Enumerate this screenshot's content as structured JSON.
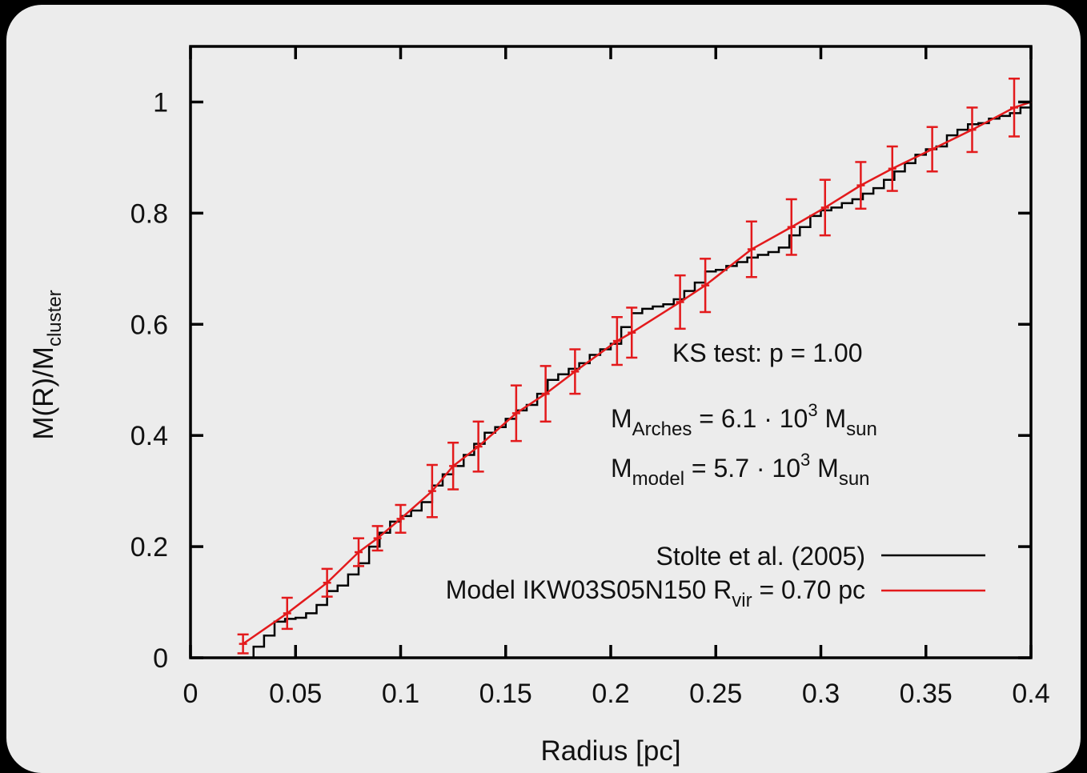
{
  "chart_data": {
    "type": "line",
    "xlabel": "Radius [pc]",
    "ylabel": "M(R)/M",
    "ylabel_sub": "cluster",
    "xlim": [
      0,
      0.4
    ],
    "ylim": [
      0,
      1.1
    ],
    "x_ticks": [
      "0",
      "0.05",
      "0.1",
      "0.15",
      "0.2",
      "0.25",
      "0.3",
      "0.35",
      "0.4"
    ],
    "x_tick_values": [
      0,
      0.05,
      0.1,
      0.15,
      0.2,
      0.25,
      0.3,
      0.35,
      0.4
    ],
    "y_ticks": [
      "0",
      "0.2",
      "0.4",
      "0.6",
      "0.8",
      "1"
    ],
    "y_tick_values": [
      0,
      0.2,
      0.4,
      0.6,
      0.8,
      1.0
    ],
    "grid": false,
    "legend_position": "bottom-right",
    "annotations": {
      "ks_test": "KS test:  p =  1.00",
      "m_arches_symbol": "M",
      "m_arches_sub": "Arches",
      "m_arches_value": " =  6.1 · 10",
      "m_arches_exp": "3",
      "m_arches_unit": " M",
      "m_arches_unit_sub": "sun",
      "m_model_symbol": "M",
      "m_model_sub": "model",
      "m_model_value": "  =  5.7 · 10",
      "m_model_exp": "3",
      "m_model_unit": " M",
      "m_model_unit_sub": "sun"
    },
    "series": [
      {
        "name": "Stolte et al. (2005)",
        "color": "#000000",
        "style": "step",
        "x": [
          0.025,
          0.03,
          0.035,
          0.04,
          0.045,
          0.05,
          0.055,
          0.06,
          0.065,
          0.07,
          0.075,
          0.08,
          0.085,
          0.09,
          0.095,
          0.1,
          0.105,
          0.11,
          0.115,
          0.12,
          0.125,
          0.13,
          0.135,
          0.14,
          0.145,
          0.15,
          0.155,
          0.16,
          0.165,
          0.17,
          0.175,
          0.18,
          0.185,
          0.19,
          0.195,
          0.2,
          0.205,
          0.21,
          0.215,
          0.22,
          0.225,
          0.23,
          0.235,
          0.24,
          0.245,
          0.25,
          0.255,
          0.26,
          0.265,
          0.27,
          0.275,
          0.28,
          0.285,
          0.29,
          0.295,
          0.3,
          0.305,
          0.31,
          0.315,
          0.32,
          0.325,
          0.33,
          0.335,
          0.34,
          0.345,
          0.35,
          0.355,
          0.36,
          0.365,
          0.37,
          0.375,
          0.38,
          0.385,
          0.39,
          0.395,
          0.4
        ],
        "y": [
          0.0,
          0.02,
          0.04,
          0.065,
          0.07,
          0.072,
          0.08,
          0.095,
          0.12,
          0.13,
          0.15,
          0.17,
          0.2,
          0.225,
          0.245,
          0.255,
          0.265,
          0.28,
          0.31,
          0.33,
          0.345,
          0.365,
          0.385,
          0.405,
          0.415,
          0.43,
          0.445,
          0.455,
          0.475,
          0.5,
          0.51,
          0.52,
          0.53,
          0.545,
          0.555,
          0.565,
          0.595,
          0.62,
          0.628,
          0.632,
          0.636,
          0.645,
          0.66,
          0.675,
          0.695,
          0.698,
          0.705,
          0.712,
          0.72,
          0.725,
          0.73,
          0.738,
          0.76,
          0.775,
          0.795,
          0.805,
          0.81,
          0.818,
          0.825,
          0.835,
          0.845,
          0.86,
          0.875,
          0.89,
          0.905,
          0.915,
          0.92,
          0.94,
          0.95,
          0.96,
          0.962,
          0.97,
          0.975,
          0.98,
          0.99,
          1.0
        ]
      },
      {
        "name": "Model IKW03S05N150 R",
        "name_sub": "vir",
        "name_rest": " = 0.70 pc",
        "color": "#e31a1c",
        "style": "line",
        "x": [
          0.025,
          0.046,
          0.065,
          0.08,
          0.089,
          0.1,
          0.115,
          0.125,
          0.137,
          0.155,
          0.169,
          0.183,
          0.203,
          0.21,
          0.233,
          0.245,
          0.267,
          0.286,
          0.302,
          0.319,
          0.334,
          0.353,
          0.372,
          0.392,
          0.4
        ],
        "y": [
          0.025,
          0.08,
          0.135,
          0.19,
          0.215,
          0.25,
          0.3,
          0.345,
          0.38,
          0.44,
          0.475,
          0.515,
          0.57,
          0.585,
          0.64,
          0.67,
          0.735,
          0.775,
          0.81,
          0.85,
          0.88,
          0.915,
          0.95,
          0.99,
          1.0
        ],
        "err": [
          0.017,
          0.028,
          0.025,
          0.025,
          0.022,
          0.025,
          0.047,
          0.042,
          0.045,
          0.05,
          0.05,
          0.04,
          0.043,
          0.045,
          0.048,
          0.048,
          0.05,
          0.05,
          0.05,
          0.042,
          0.04,
          0.04,
          0.04,
          0.052,
          0.0
        ]
      }
    ]
  }
}
